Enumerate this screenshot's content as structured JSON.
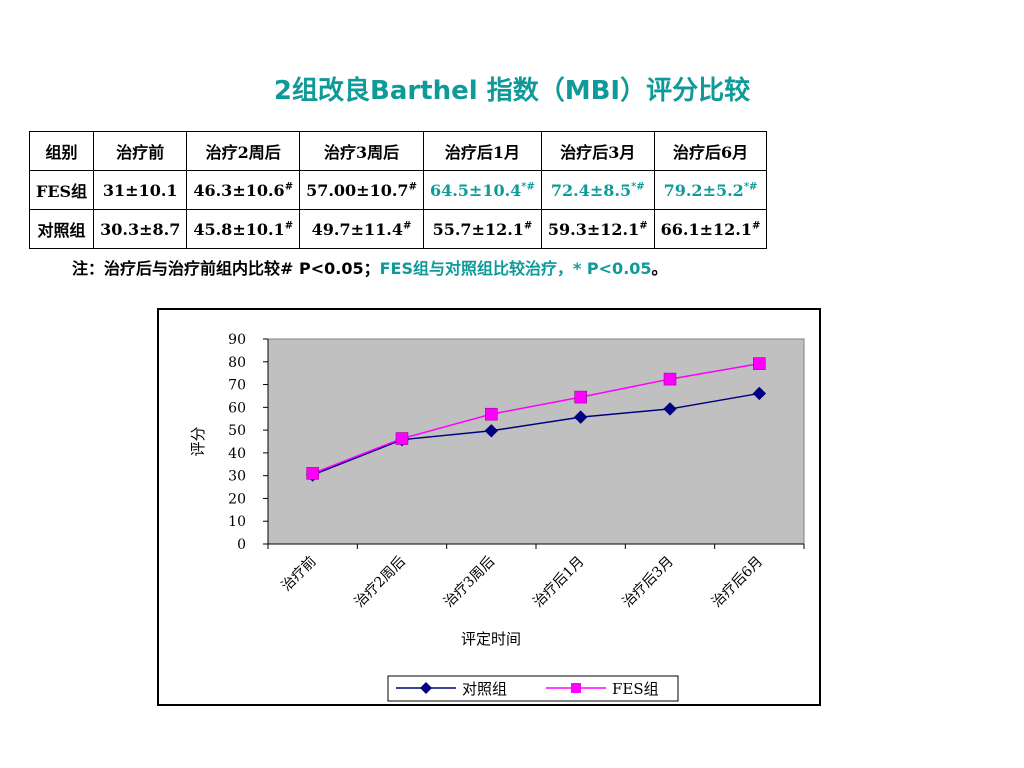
{
  "title": "2组改良Barthel 指数（MBI）评分比较",
  "table": {
    "header": [
      "组别",
      "治疗前",
      "治疗2周后",
      "治疗3周后",
      "治疗后1月",
      "治疗后3月",
      "治疗后6月"
    ],
    "rows": [
      {
        "label": "FES组",
        "cells": [
          {
            "text": "31±10.1",
            "mark": "",
            "teal": false
          },
          {
            "text": "46.3±10.6",
            "mark": "#",
            "teal": false
          },
          {
            "text": "57.00±10.7",
            "mark": "#",
            "teal": false
          },
          {
            "text": "64.5±10.4",
            "mark": "*#",
            "teal": true
          },
          {
            "text": "72.4±8.5",
            "mark": "*#",
            "teal": true
          },
          {
            "text": "79.2±5.2",
            "mark": "*#",
            "teal": true
          }
        ]
      },
      {
        "label": "对照组",
        "cells": [
          {
            "text": "30.3±8.7",
            "mark": "",
            "teal": false
          },
          {
            "text": "45.8±10.1",
            "mark": "#",
            "teal": false
          },
          {
            "text": "49.7±11.4",
            "mark": "#",
            "teal": false
          },
          {
            "text": "55.7±12.1",
            "mark": "#",
            "teal": false
          },
          {
            "text": "59.3±12.1",
            "mark": "#",
            "teal": false
          },
          {
            "text": "66.1±12.1",
            "mark": "#",
            "teal": false
          }
        ]
      }
    ]
  },
  "note": {
    "part1": "注：治疗后与治疗前组内比较# P<0.05；",
    "part2": "FES组与对照组比较治疗，",
    "part3": "* P<0.05",
    "part4": "。"
  },
  "colors": {
    "teal": "#0f9a9a",
    "control": "#000080",
    "fes": "#ff00ff",
    "plot_bg": "#c0c0c0"
  },
  "chart_data": {
    "type": "line",
    "categories": [
      "治疗前",
      "治疗2周后",
      "治疗3周后",
      "治疗后1月",
      "治疗后3月",
      "治疗后6月"
    ],
    "series": [
      {
        "name": "对照组",
        "values": [
          30.3,
          45.8,
          49.7,
          55.7,
          59.3,
          66.1
        ],
        "color": "#000080",
        "marker": "diamond"
      },
      {
        "name": "FES组",
        "values": [
          31,
          46.3,
          57.0,
          64.5,
          72.4,
          79.2
        ],
        "color": "#ff00ff",
        "marker": "square"
      }
    ],
    "xlabel": "评定时间",
    "ylabel": "评分",
    "ylim": [
      0,
      90
    ],
    "yticks": [
      0,
      10,
      20,
      30,
      40,
      50,
      60,
      70,
      80,
      90
    ],
    "grid": false,
    "legend": "bottom"
  }
}
